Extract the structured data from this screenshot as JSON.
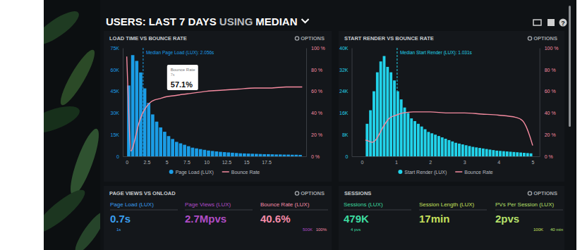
{
  "header": {
    "title": [
      "USERS:",
      "LAST 7 DAYS",
      "USING",
      "MEDIAN"
    ],
    "help": "?"
  },
  "options_label": "OPTIONS",
  "chart_data": [
    {
      "type": "histogram",
      "title": "LOAD TIME VS BOUNCE RATE",
      "bins": [
        0,
        0.5,
        1,
        1.5,
        2,
        2.5,
        3,
        3.5,
        4,
        4.5,
        5,
        5.5,
        6,
        6.5,
        7,
        7.5,
        8,
        8.5,
        9,
        9.5,
        10,
        10.5,
        11,
        11.5,
        12,
        12.5,
        13,
        13.5,
        14,
        14.5,
        15,
        15.5,
        16,
        16.5,
        17,
        17.5,
        18,
        18.5,
        19,
        19.5,
        20,
        20.5,
        21,
        21.5,
        22
      ],
      "series": [
        {
          "name": "Page Load (LUX)",
          "type": "bar",
          "color": "#1b9de6",
          "values": [
            49000,
            70000,
            66000,
            58000,
            47000,
            37000,
            29000,
            24000,
            20000,
            17000,
            14000,
            12000,
            10000,
            9000,
            8000,
            7000,
            6000,
            5500,
            5000,
            4500,
            4000,
            3700,
            3400,
            3100,
            2900,
            2700,
            2500,
            2300,
            2100,
            2000,
            1900,
            1800,
            1700,
            1600,
            1500,
            1500,
            1400,
            1300,
            1300,
            1200,
            1200,
            1100,
            1100,
            1000
          ]
        },
        {
          "name": "Bounce Rate",
          "type": "line",
          "color": "#f58ba0",
          "axis": "y2",
          "x": [
            0,
            0.25,
            0.5,
            0.75,
            1,
            1.5,
            2,
            2.5,
            3,
            3.5,
            4,
            5,
            6,
            7,
            8,
            10,
            12,
            14,
            16,
            18,
            20,
            22
          ],
          "values": [
            92,
            40,
            5,
            8,
            15,
            30,
            40,
            46,
            50,
            52,
            53,
            55,
            56,
            57.1,
            58,
            60,
            61,
            62,
            63,
            63,
            64,
            64
          ]
        }
      ],
      "xlim": [
        -0.5,
        22.5
      ],
      "xticks": [
        0,
        2.5,
        5,
        7.5,
        10,
        12.5,
        15,
        17.5
      ],
      "ylim": [
        0,
        75000
      ],
      "yticks": [
        0,
        {
          "value": 15000,
          "label": "15K"
        },
        {
          "value": 30000,
          "label": "30K"
        },
        {
          "value": 45000,
          "label": "45K"
        },
        {
          "value": 60000,
          "label": "60K"
        },
        {
          "value": 75000,
          "label": "75K"
        }
      ],
      "y2lim": [
        0,
        100
      ],
      "y2ticks": [
        {
          "value": 0,
          "label": "0 %"
        },
        {
          "value": 20,
          "label": "20 %"
        },
        {
          "value": 40,
          "label": "40 %"
        },
        {
          "value": 60,
          "label": "60 %"
        },
        {
          "value": 80,
          "label": "80 %"
        },
        {
          "value": 100,
          "label": "100 %"
        }
      ],
      "legend": "bottom",
      "annotations": [
        {
          "text": "Median Page Load (LUX): 2.056s",
          "x": 2.056
        },
        {
          "text": "Bounce Rate",
          "sub": "7s",
          "label": "57.1%",
          "x": 7,
          "y": 57.1
        }
      ]
    },
    {
      "type": "histogram",
      "title": "START RENDER VS BOUNCE RATE",
      "bins": [
        0.1,
        0.2,
        0.3,
        0.4,
        0.5,
        0.6,
        0.7,
        0.8,
        0.9,
        1.0,
        1.1,
        1.2,
        1.3,
        1.4,
        1.5,
        1.6,
        1.7,
        1.8,
        1.9,
        2.0,
        2.1,
        2.2,
        2.3,
        2.4,
        2.5,
        2.6,
        2.7,
        2.8,
        2.9,
        3.0,
        3.1,
        3.2,
        3.3,
        3.4,
        3.5,
        3.6,
        3.7,
        3.8,
        3.9,
        4.0,
        4.1,
        4.2,
        4.3,
        4.4,
        4.5,
        4.6,
        4.7,
        4.8,
        4.9,
        5.0
      ],
      "series": [
        {
          "name": "Start Render (LUX)",
          "type": "bar",
          "color": "#22d3ea",
          "values": [
            12000,
            17000,
            24000,
            31000,
            35000,
            37000,
            33000,
            31000,
            28000,
            24000,
            21000,
            18000,
            16000,
            14000,
            13000,
            12000,
            11000,
            10000,
            9000,
            8500,
            8000,
            7500,
            7000,
            6500,
            6000,
            5500,
            5000,
            4700,
            4400,
            4100,
            3800,
            3500,
            3300,
            3100,
            2900,
            2700,
            2500,
            2300,
            2100,
            2000,
            1900,
            1800,
            1700,
            1600,
            1500,
            1400,
            1300,
            1200,
            1100
          ]
        },
        {
          "name": "Bounce Rate",
          "type": "line",
          "color": "#f58ba0",
          "axis": "y2",
          "x": [
            0.1,
            0.2,
            0.3,
            0.4,
            0.5,
            0.6,
            0.7,
            0.8,
            1.0,
            1.2,
            1.5,
            2,
            2.5,
            3,
            3.5,
            4,
            4.5,
            4.7,
            4.8,
            4.9,
            5.0
          ],
          "values": [
            15,
            14,
            13,
            15,
            20,
            26,
            31,
            35,
            38,
            40,
            41,
            41,
            40,
            40,
            39,
            38,
            36,
            33,
            28,
            20,
            10
          ]
        }
      ],
      "xlim": [
        -0.3,
        5.2
      ],
      "xticks": [
        0,
        1,
        2,
        3,
        4,
        5
      ],
      "ylim": [
        0,
        40000
      ],
      "yticks": [
        0,
        {
          "value": 8000,
          "label": "8K"
        },
        {
          "value": 16000,
          "label": "16K"
        },
        {
          "value": 24000,
          "label": "24K"
        },
        {
          "value": 32000,
          "label": "32K"
        },
        {
          "value": 40000,
          "label": "40K"
        }
      ],
      "y2lim": [
        0,
        100
      ],
      "y2ticks": [
        {
          "value": 0,
          "label": "0 %"
        },
        {
          "value": 20,
          "label": "20 %"
        },
        {
          "value": 40,
          "label": "40 %"
        },
        {
          "value": 60,
          "label": "60 %"
        },
        {
          "value": 80,
          "label": "80 %"
        },
        {
          "value": 100,
          "label": "100 %"
        }
      ],
      "legend": "bottom",
      "annotations": [
        {
          "text": "Median Start Render (LUX): 1.031s",
          "x": 1.031
        }
      ]
    }
  ],
  "panels": [
    {
      "title": "PAGE VIEWS VS ONLOAD",
      "kpis": [
        {
          "label": "Page Load (LUX)",
          "value": "0.7s",
          "color": "#3a9ff0"
        },
        {
          "label": "Page Views (LUX)",
          "value": "2.7Mpvs",
          "color": "#b04cc6"
        },
        {
          "label": "Bounce Rate (LUX)",
          "value": "40.6%",
          "color": "#f58ba8"
        }
      ],
      "notes": [
        "1s",
        "500K",
        "100%"
      ]
    },
    {
      "title": "SESSIONS",
      "kpis": [
        {
          "label": "Sessions (LUX)",
          "value": "479K",
          "color": "#3ddca0"
        },
        {
          "label": "Session Length (LUX)",
          "value": "17min",
          "color": "#c6e05c"
        },
        {
          "label": "PVs Per Session (LUX)",
          "value": "2pvs",
          "color": "#b6e06a"
        }
      ],
      "notes": [
        "4 pvs",
        "100K",
        "40 min"
      ]
    }
  ]
}
